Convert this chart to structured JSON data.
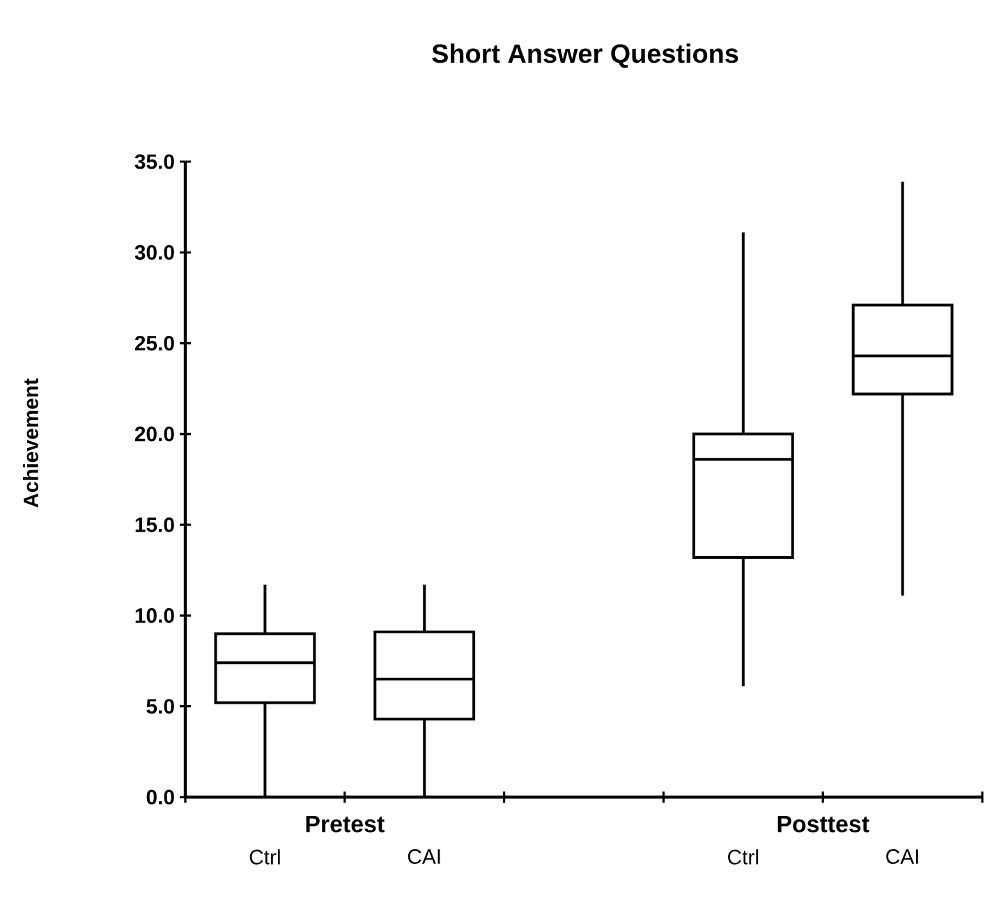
{
  "chart_data": {
    "type": "box",
    "title": "Short Answer Questions",
    "ylabel": "Achievement",
    "categories": [
      "Ctrl",
      "CAI",
      "Ctrl",
      "CAI"
    ],
    "boxes": [
      {
        "low": 0,
        "q1": 5.2,
        "median": 7.4,
        "q3": 9.0,
        "high": 11.7
      },
      {
        "low": 0,
        "q1": 4.3,
        "median": 6.5,
        "q3": 9.1,
        "high": 11.7
      },
      {
        "low": 6.1,
        "q1": 13.2,
        "median": 18.6,
        "q3": 20.0,
        "high": 31.1
      },
      {
        "low": 11.1,
        "q1": 22.2,
        "median": 24.3,
        "q3": 27.1,
        "high": 33.9
      }
    ],
    "ylim": [
      0,
      35
    ],
    "yticks": [
      {
        "value": 0,
        "label": "0.0"
      },
      {
        "value": 5,
        "label": "5.0"
      },
      {
        "value": 10,
        "label": "10.0"
      },
      {
        "value": 15,
        "label": "15.0"
      },
      {
        "value": 20,
        "label": "20.0"
      },
      {
        "value": 25,
        "label": "25.0"
      },
      {
        "value": 30,
        "label": "30.0"
      },
      {
        "value": 35,
        "label": "35.0"
      }
    ],
    "annotations": [
      "Pretest",
      "Posttest"
    ]
  }
}
